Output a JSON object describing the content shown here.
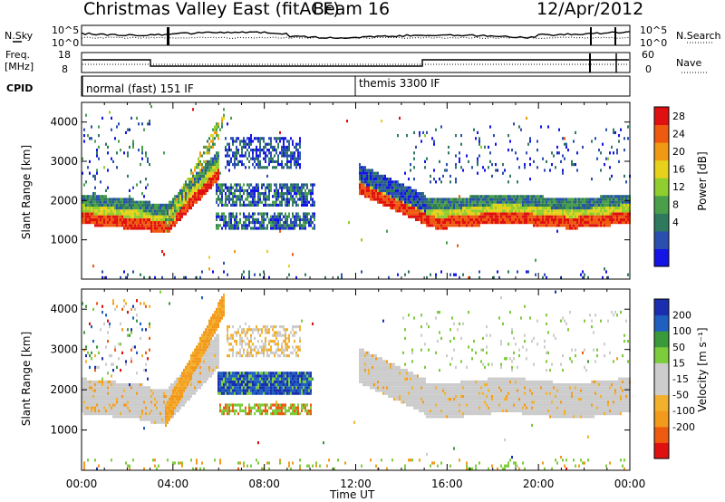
{
  "header": {
    "station": "Christmas Valley East (fitACF)",
    "beam": "Beam 16",
    "date": "12/Apr/2012"
  },
  "noise_panel": {
    "left_label": "N.Sky",
    "right_label": "N.Search",
    "left_ticks": [
      "10^5",
      "10^0"
    ],
    "right_ticks": [
      "10^5",
      "10^0"
    ]
  },
  "freq_panel": {
    "left_label_1": "Freq.",
    "left_label_2": "[MHz]",
    "right_label": "Nave",
    "left_ticks": [
      "18",
      "8"
    ],
    "right_ticks": [
      "60",
      "0"
    ]
  },
  "cpid_panel": {
    "label": "CPID",
    "modes": [
      {
        "name": "normal (fast) 151 IF",
        "start": "00:00"
      },
      {
        "name": "themis 3300 IF",
        "start": "12:00"
      }
    ]
  },
  "colors": {
    "power": [
      "#1414e6",
      "#2a4fb0",
      "#2f7a5e",
      "#4aa04a",
      "#8fce2e",
      "#e6d21a",
      "#f09a14",
      "#ee5a10",
      "#e01010"
    ],
    "velocity": [
      "#e01010",
      "#ee5a10",
      "#f39a1c",
      "#f2b02c",
      "#cccccc",
      "#cccccc",
      "#7ccc3c",
      "#3a9a3a",
      "#1f5fbf",
      "#1a2fb0"
    ]
  },
  "chart_data": [
    {
      "type": "heatmap",
      "quantity": "Power",
      "xlabel": "Time UT",
      "ylabel": "Slant Range [km]",
      "xlim": [
        "00:00",
        "24:00"
      ],
      "ylim": [
        0,
        4500
      ],
      "x_ticks": [
        "00:00",
        "04:00",
        "08:00",
        "12:00",
        "16:00",
        "20:00",
        "00:00"
      ],
      "y_ticks": [
        1000,
        2000,
        3000,
        4000
      ],
      "colorbar_label": "Power [dB]",
      "colorbar_ticks": [
        "28",
        "24",
        "20",
        "16",
        "12",
        "8",
        "4"
      ],
      "features": [
        {
          "range_km": [
            1300,
            2000
          ],
          "time": [
            "00:00",
            "03:00"
          ],
          "power_db": 28
        },
        {
          "range_km": [
            1400,
            2000
          ],
          "time": [
            "15:00",
            "24:00"
          ],
          "power_db": 28
        },
        {
          "range_km": [
            2000,
            2400
          ],
          "time": [
            "06:00",
            "10:00"
          ],
          "power_db": 8
        },
        {
          "range_km": [
            2800,
            3700
          ],
          "time": [
            "06:30",
            "09:30"
          ],
          "power_db": 6
        }
      ]
    },
    {
      "type": "heatmap",
      "quantity": "Velocity",
      "xlabel": "Time UT",
      "ylabel": "Slant Range [km]",
      "xlim": [
        "00:00",
        "24:00"
      ],
      "ylim": [
        0,
        4500
      ],
      "x_ticks": [
        "00:00",
        "04:00",
        "08:00",
        "12:00",
        "16:00",
        "20:00",
        "00:00"
      ],
      "y_ticks": [
        1000,
        2000,
        3000,
        4000
      ],
      "colorbar_label": "Velocity [m s⁻¹]",
      "colorbar_ticks": [
        "200",
        "100",
        "50",
        "15",
        "-15",
        "-50",
        "-100",
        "-200"
      ],
      "features": [
        {
          "range_km": [
            1300,
            2200
          ],
          "time": [
            "00:00",
            "03:00"
          ],
          "velocity_ms": 0
        },
        {
          "range_km": [
            1900,
            2500
          ],
          "time": [
            "06:00",
            "10:00"
          ],
          "velocity_ms": 200
        },
        {
          "range_km": [
            1500,
            2400
          ],
          "time": [
            "12:00",
            "24:00"
          ],
          "velocity_ms": 0
        }
      ]
    }
  ],
  "time_axis": {
    "ticks": [
      "00:00",
      "04:00",
      "08:00",
      "12:00",
      "16:00",
      "20:00",
      "00:00"
    ],
    "label": "Time UT"
  }
}
